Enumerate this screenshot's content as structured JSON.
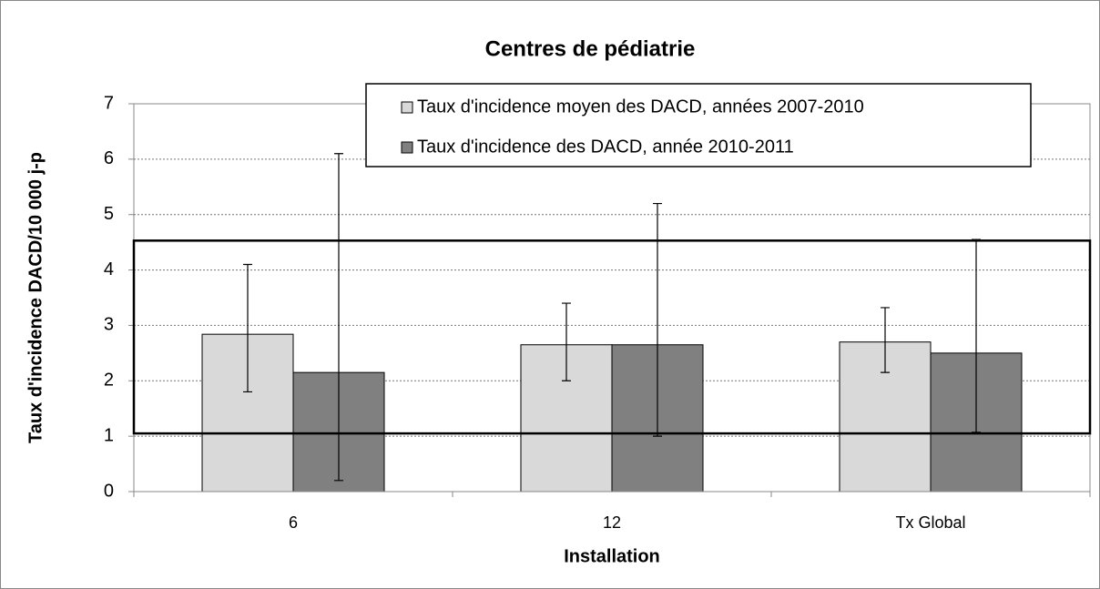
{
  "chart_data": {
    "type": "bar",
    "title": "Centres de pédiatrie",
    "x_label": "Installation",
    "y_label": "Taux d'incidence DACD/10 000 j-p",
    "categories": [
      "6",
      "12",
      "Tx Global"
    ],
    "series": [
      {
        "name": "Taux d'incidence moyen des DACD, années 2007-2010",
        "color": "#d9d9d9",
        "values": [
          2.84,
          2.65,
          2.7
        ],
        "ci_low": [
          1.8,
          2.0,
          2.15
        ],
        "ci_high": [
          4.1,
          3.4,
          3.32
        ]
      },
      {
        "name": "Taux d'incidence des DACD, année 2010-2011",
        "color": "#808080",
        "values": [
          2.15,
          2.65,
          2.5
        ],
        "ci_low": [
          0.2,
          1.0,
          1.07
        ],
        "ci_high": [
          6.1,
          5.2,
          4.55
        ]
      }
    ],
    "reference_band": [
      1.05,
      4.53
    ],
    "ylim": [
      0,
      7
    ],
    "yticks": [
      0,
      1,
      2,
      3,
      4,
      5,
      6,
      7
    ],
    "grid": true
  }
}
